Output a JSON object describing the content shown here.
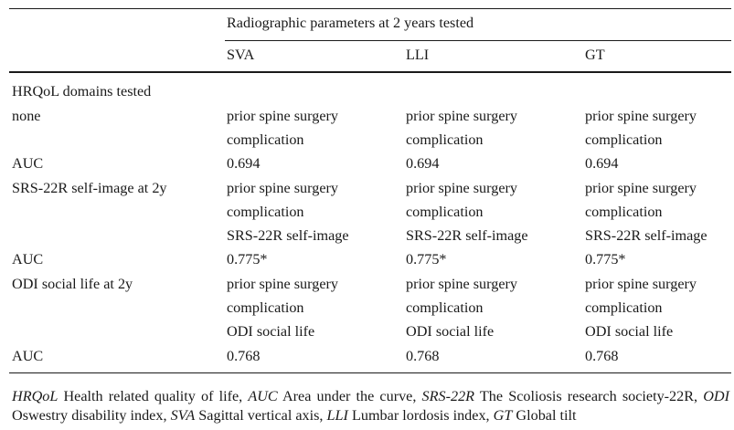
{
  "table": {
    "group_header": "Radiographic parameters at 2 years tested",
    "columns": [
      "SVA",
      "LLI",
      "GT"
    ],
    "section_label": "HRQoL domains tested",
    "rows": [
      {
        "label": "none",
        "cells": [
          "prior spine surgery",
          "prior spine surgery",
          "prior spine surgery"
        ],
        "cells2": [
          "complication",
          "complication",
          "complication"
        ]
      },
      {
        "label": "AUC",
        "cells": [
          "0.694",
          "0.694",
          "0.694"
        ]
      },
      {
        "label": "SRS-22R self-image at 2y",
        "cells": [
          "prior spine surgery",
          "prior spine surgery",
          "prior spine surgery"
        ],
        "cells2": [
          "complication",
          "complication",
          "complication"
        ],
        "cells3": [
          "SRS-22R self-image",
          "SRS-22R self-image",
          "SRS-22R self-image"
        ]
      },
      {
        "label": "AUC",
        "cells": [
          "0.775*",
          "0.775*",
          "0.775*"
        ]
      },
      {
        "label": "ODI social life at 2y",
        "cells": [
          "prior spine surgery",
          "prior spine surgery",
          "prior spine surgery"
        ],
        "cells2": [
          "complication",
          "complication",
          "complication"
        ],
        "cells3": [
          "ODI social life",
          "ODI social life",
          "ODI social life"
        ]
      },
      {
        "label": "AUC",
        "cells": [
          "0.768",
          "0.768",
          "0.768"
        ]
      }
    ]
  },
  "footnote": [
    {
      "abbr": "HRQoL",
      "text": " Health related quality of life, "
    },
    {
      "abbr": "AUC",
      "text": " Area under the curve, "
    },
    {
      "abbr": "SRS-22R",
      "text": " The Scoliosis research society-22R, "
    },
    {
      "abbr": "ODI",
      "text": " Oswestry disability index, "
    },
    {
      "abbr": "SVA",
      "text": " Sagittal vertical axis, "
    },
    {
      "abbr": "LLI",
      "text": " Lumbar lordosis index, "
    },
    {
      "abbr": "GT",
      "text": " Global tilt"
    }
  ]
}
